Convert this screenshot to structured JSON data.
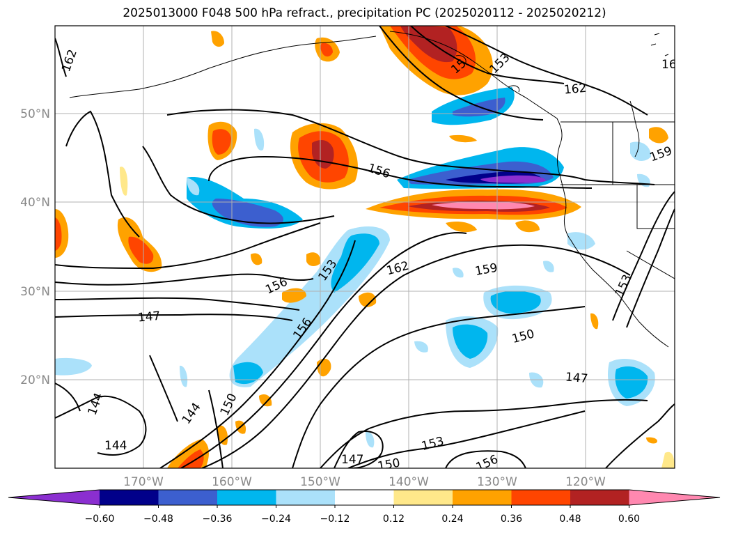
{
  "title": "2025013000 F048 500 hPa refract., precipitation PC (2025020112 - 2025020212)",
  "axes": {
    "lat_labels": [
      "50°N",
      "40°N",
      "30°N",
      "20°N"
    ],
    "lon_labels": [
      "170°W",
      "160°W",
      "150°W",
      "140°W",
      "130°W",
      "120°W"
    ]
  },
  "contour_labels": [
    "162",
    "162",
    "162",
    "162",
    "156",
    "156",
    "156",
    "153",
    "153",
    "159",
    "159",
    "147",
    "147",
    "147",
    "144",
    "144",
    "144",
    "150",
    "150",
    "150",
    "153",
    "156",
    "15",
    "153"
  ],
  "colorbar": {
    "colors": [
      "#8b2fd0",
      "#01008a",
      "#3c5fcf",
      "#00b6ee",
      "#abe1fa",
      "#ffffff",
      "#ffe88a",
      "#ffa200",
      "#ff4500",
      "#b22222",
      "#ff88b0"
    ],
    "tick_labels": [
      "−0.60",
      "−0.48",
      "−0.36",
      "−0.24",
      "−0.12",
      "0.12",
      "0.24",
      "0.36",
      "0.48",
      "0.60"
    ]
  }
}
